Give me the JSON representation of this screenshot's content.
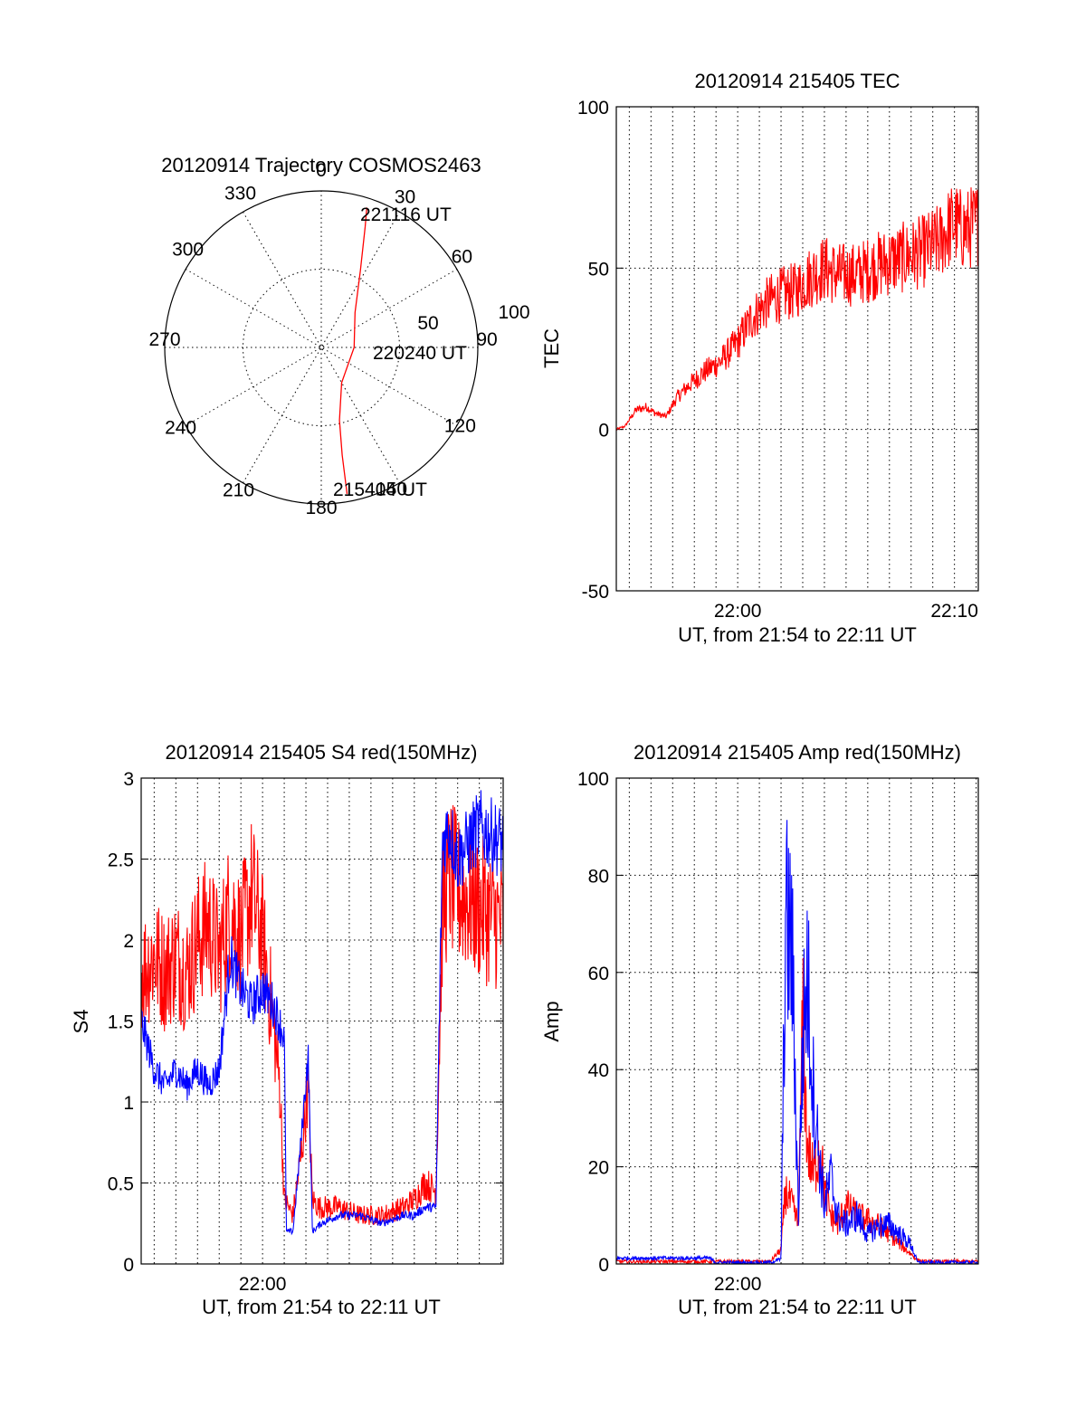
{
  "colors": {
    "red": "#ff0000",
    "blue": "#0000ff",
    "ink": "#000000"
  },
  "chart_data": [
    {
      "type": "polar-trajectory",
      "title": "20120914 Trajectory COSMOS2463",
      "azimuth_labels": [
        "0",
        "30",
        "60",
        "90",
        "120",
        "150",
        "180",
        "210",
        "240",
        "270",
        "300",
        "330"
      ],
      "radial_labels": [
        "50",
        "100"
      ],
      "radial_max": 100,
      "annotations": {
        "start": "215404 UT",
        "mid": "220240 UT",
        "end": "221116 UT"
      },
      "trajectory": [
        {
          "az": 170,
          "r": 95
        },
        {
          "az": 169,
          "r": 70
        },
        {
          "az": 166,
          "r": 48
        },
        {
          "az": 150,
          "r": 26
        },
        {
          "az": 90,
          "r": 21
        },
        {
          "az": 44,
          "r": 31
        },
        {
          "az": 27,
          "r": 55
        },
        {
          "az": 20,
          "r": 82
        },
        {
          "az": 18,
          "r": 94
        }
      ]
    },
    {
      "type": "line",
      "title": "20120914 215405 TEC",
      "ylabel": "TEC",
      "xlabel": "UT, from 21:54 to 22:11 UT",
      "ylim": [
        -50,
        100
      ],
      "yticks": [
        "-50",
        "0",
        "50",
        "100"
      ],
      "xlim": [
        -5.6,
        11.1
      ],
      "xticks": [
        {
          "x": 0,
          "label": "22:00"
        },
        {
          "x": 10,
          "label": "22:10"
        }
      ],
      "minor_step": 1,
      "series": [
        {
          "color": "red",
          "noise": 0.6,
          "x": [
            -5.6,
            -5.2,
            -4.7,
            -4.2,
            -3.8,
            -3.3,
            -2.8,
            -2.2,
            -1.5,
            -0.8,
            0.0,
            0.6,
            1.0,
            1.5,
            2.1,
            2.7,
            3.1,
            3.5,
            4.0,
            4.6,
            5.5,
            6.5,
            7.5,
            8.5,
            9.3,
            9.7,
            10.0,
            10.3,
            10.6,
            11.1
          ],
          "y": [
            0,
            1,
            6,
            7,
            5,
            4,
            10,
            14,
            18,
            21,
            27,
            34,
            37,
            40,
            42,
            43,
            46,
            48,
            50,
            48,
            48,
            51,
            53,
            55,
            58,
            62,
            64,
            62,
            62,
            64
          ]
        }
      ]
    },
    {
      "type": "line",
      "title": "20120914 215405 S4 red(150MHz)",
      "ylabel": "S4",
      "xlabel": "UT, from 21:54 to 22:11 UT",
      "ylim": [
        0,
        3
      ],
      "yticks": [
        "0",
        "0.5",
        "1",
        "1.5",
        "2",
        "2.5",
        "3"
      ],
      "xlim": [
        -5.6,
        11.1
      ],
      "xticks": [
        {
          "x": 0,
          "label": "22:00"
        }
      ],
      "minor_step": 1,
      "series": [
        {
          "color": "red",
          "noise": 0.6,
          "x": [
            -5.6,
            -5.0,
            -4.5,
            -4.0,
            -3.5,
            -3.0,
            -2.5,
            -2.0,
            -1.5,
            -1.0,
            -0.5,
            0.0,
            0.4,
            0.8,
            1.0,
            1.4,
            1.8,
            2.1,
            2.3,
            2.6,
            3.5,
            4.5,
            5.5,
            6.5,
            7.0,
            7.5,
            8.0,
            8.3,
            8.6,
            9.0,
            10.0,
            11.1
          ],
          "y": [
            1.8,
            1.9,
            1.8,
            1.9,
            1.8,
            2.0,
            2.1,
            1.9,
            2.2,
            2.0,
            2.3,
            2.0,
            1.6,
            1.1,
            0.4,
            0.3,
            0.7,
            1.1,
            0.4,
            0.35,
            0.35,
            0.3,
            0.3,
            0.35,
            0.4,
            0.5,
            0.45,
            2.2,
            2.4,
            2.3,
            2.2,
            2.1
          ]
        },
        {
          "color": "blue",
          "noise": 0.25,
          "x": [
            -5.6,
            -5.0,
            -4.5,
            -4.0,
            -3.5,
            -3.0,
            -2.5,
            -2.0,
            -1.5,
            -1.0,
            -0.5,
            0.0,
            0.5,
            1.0,
            1.1,
            1.4,
            1.8,
            2.1,
            2.3,
            2.7,
            3.5,
            4.5,
            5.5,
            6.5,
            7.0,
            7.5,
            8.0,
            8.3,
            8.6,
            9.0,
            10.0,
            11.1
          ],
          "y": [
            1.5,
            1.2,
            1.1,
            1.2,
            1.1,
            1.2,
            1.1,
            1.2,
            1.9,
            1.7,
            1.6,
            1.7,
            1.6,
            1.4,
            0.2,
            0.2,
            0.8,
            1.3,
            0.2,
            0.25,
            0.3,
            0.3,
            0.25,
            0.3,
            0.3,
            0.35,
            0.35,
            2.6,
            2.7,
            2.5,
            2.7,
            2.6
          ]
        }
      ]
    },
    {
      "type": "line",
      "title": "20120914 215405 Amp red(150MHz)",
      "ylabel": "Amp",
      "xlabel": "UT, from 21:54 to 22:11 UT",
      "ylim": [
        0,
        100
      ],
      "yticks": [
        "0",
        "20",
        "40",
        "60",
        "80",
        "100"
      ],
      "xlim": [
        -5.6,
        11.1
      ],
      "xticks": [
        {
          "x": 0,
          "label": "22:00"
        }
      ],
      "minor_step": 1,
      "series": [
        {
          "color": "red",
          "noise": 0.9,
          "x": [
            -5.6,
            1.5,
            2.0,
            2.2,
            2.5,
            2.8,
            3.0,
            3.2,
            3.5,
            3.8,
            4.0,
            4.3,
            4.6,
            5.0,
            5.5,
            6.0,
            6.5,
            7.0,
            7.5,
            8.0,
            8.3,
            8.6,
            11.1
          ],
          "y": [
            0.5,
            0.5,
            3,
            15,
            12,
            8,
            50,
            25,
            18,
            25,
            15,
            10,
            8,
            12,
            10,
            9,
            8,
            6,
            4,
            2,
            0.8,
            0.5,
            0.5
          ]
        },
        {
          "color": "blue",
          "noise": 1.0,
          "x": [
            -5.6,
            -1.3,
            -1.0,
            1.5,
            2.0,
            2.2,
            2.5,
            2.8,
            3.0,
            3.2,
            3.5,
            3.8,
            4.0,
            4.3,
            4.6,
            5.0,
            5.5,
            6.0,
            6.5,
            7.0,
            7.5,
            8.0,
            8.3,
            8.6,
            11.1
          ],
          "y": [
            1.2,
            1.2,
            0.3,
            0.3,
            1,
            70,
            65,
            10,
            45,
            60,
            35,
            20,
            12,
            18,
            10,
            8,
            10,
            6,
            8,
            8,
            6,
            4,
            0.3,
            0.3,
            0.3
          ]
        }
      ]
    }
  ]
}
